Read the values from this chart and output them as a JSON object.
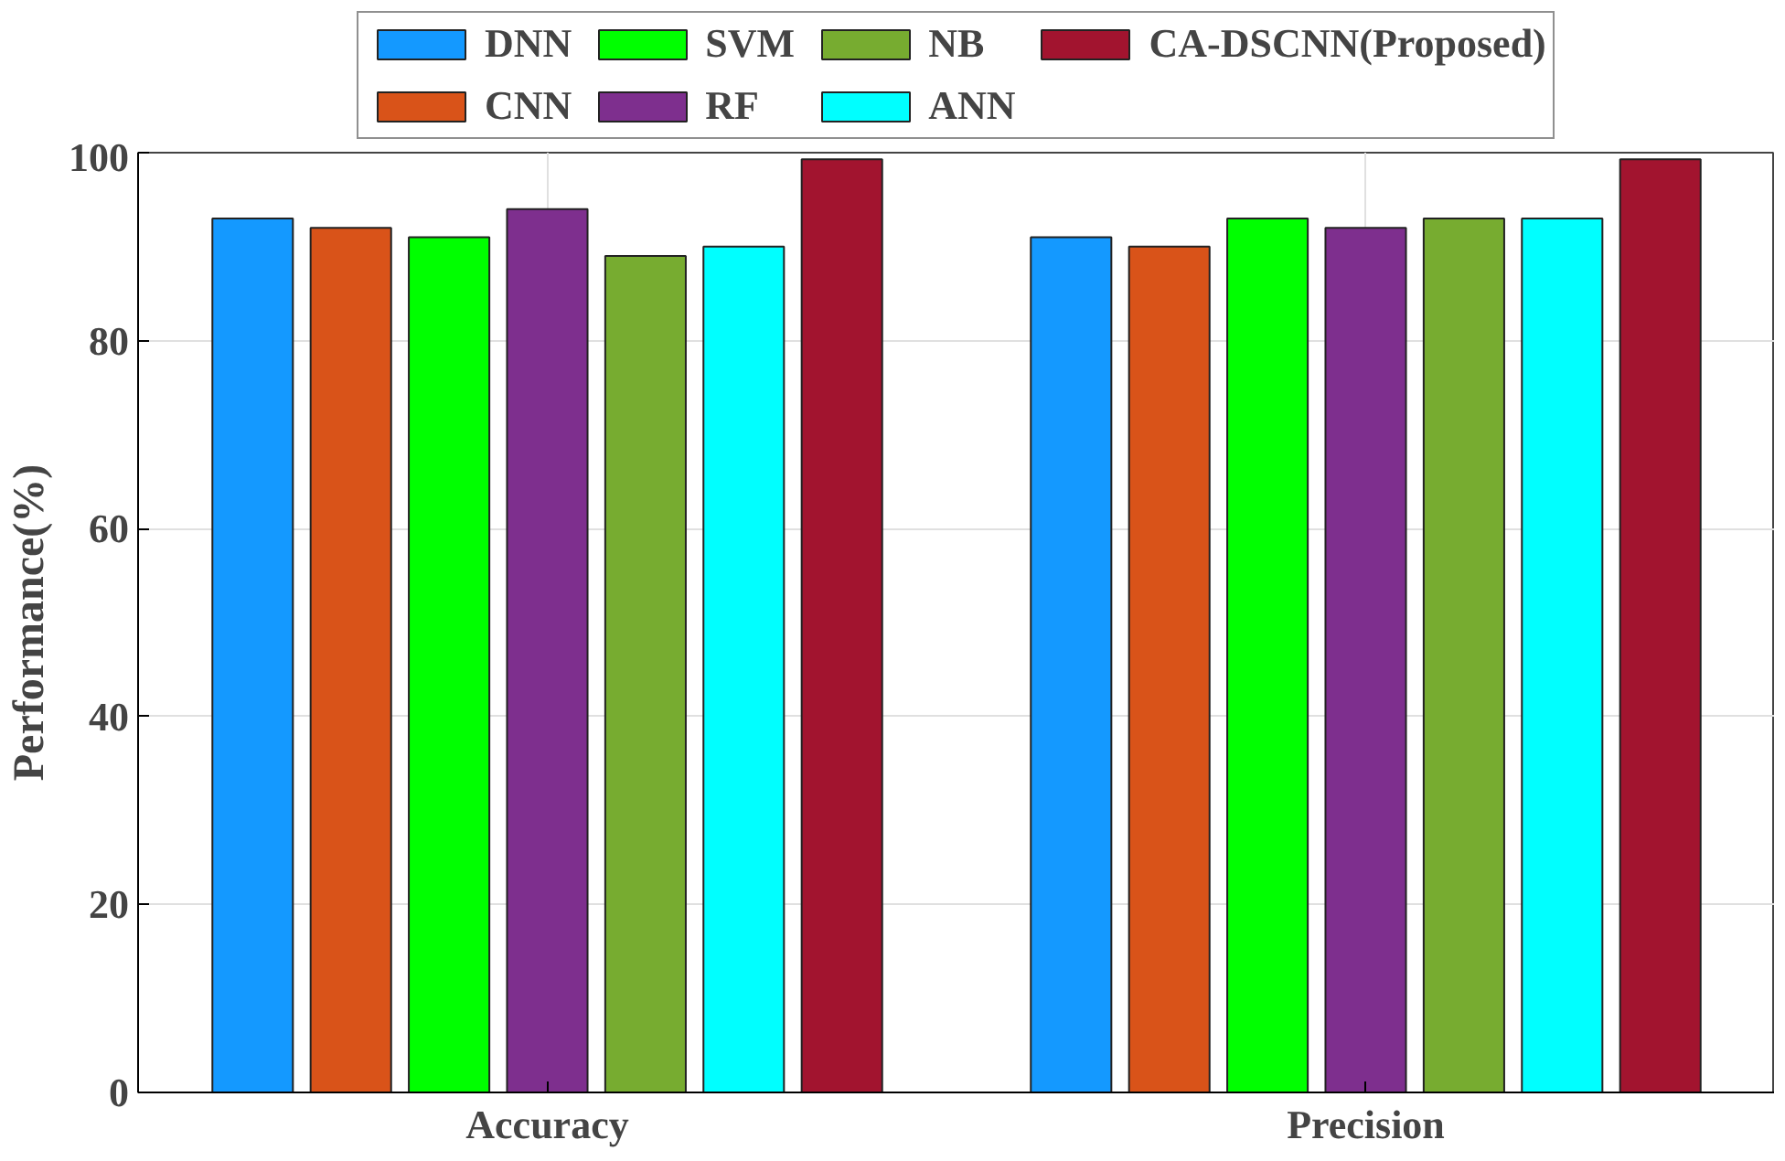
{
  "chart_data": {
    "type": "bar",
    "categories": [
      "Accuracy",
      "Precision"
    ],
    "ylabel": "Performance(%)",
    "ylim": [
      0,
      100
    ],
    "yticks": [
      0,
      20,
      40,
      60,
      80,
      100
    ],
    "grid": true,
    "legend": "top",
    "series": [
      {
        "name": "DNN",
        "color": "#1499ff",
        "values": [
          93,
          91
        ]
      },
      {
        "name": "CNN",
        "color": "#d95319",
        "values": [
          92,
          90
        ]
      },
      {
        "name": "SVM",
        "color": "#00ff00",
        "values": [
          91,
          93
        ]
      },
      {
        "name": "RF",
        "color": "#7e2f8e",
        "values": [
          94,
          92
        ]
      },
      {
        "name": "NB",
        "color": "#77ac30",
        "values": [
          89,
          93
        ]
      },
      {
        "name": "ANN",
        "color": "#00ffff",
        "values": [
          90,
          93
        ]
      },
      {
        "name": "CA-DSCNN(Proposed)",
        "color": "#a2142f",
        "values": [
          99.3,
          99.3
        ]
      }
    ]
  }
}
